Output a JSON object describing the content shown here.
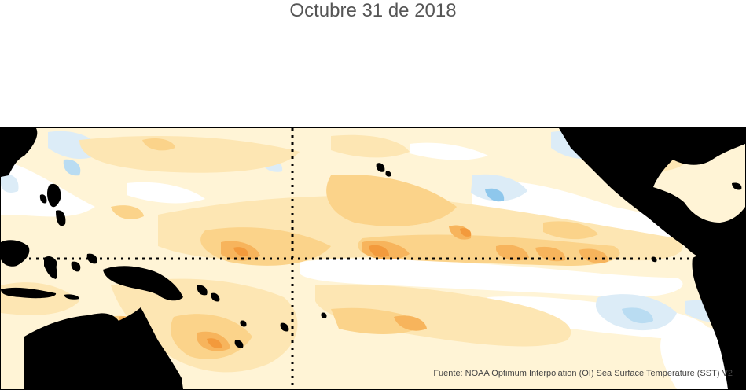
{
  "title": "Octubre 31 de 2018",
  "source": "Fuente: NOAA Optimum Interpolation (OI) Sea Surface Temperature (SST) V2",
  "colors": {
    "land": "#000000",
    "cool_light": "#dcecf7",
    "cool_mid": "#b9dcf2",
    "cool_strong": "#8ec7ec",
    "neutral": "#ffffff",
    "warm_pale": "#fff4d6",
    "warm_light": "#fde6b3",
    "warm_mid": "#fbd38a",
    "warm_strong": "#f7b45c",
    "warm_hot": "#f39a3c",
    "warm_hotter": "#ee7d2a"
  }
}
